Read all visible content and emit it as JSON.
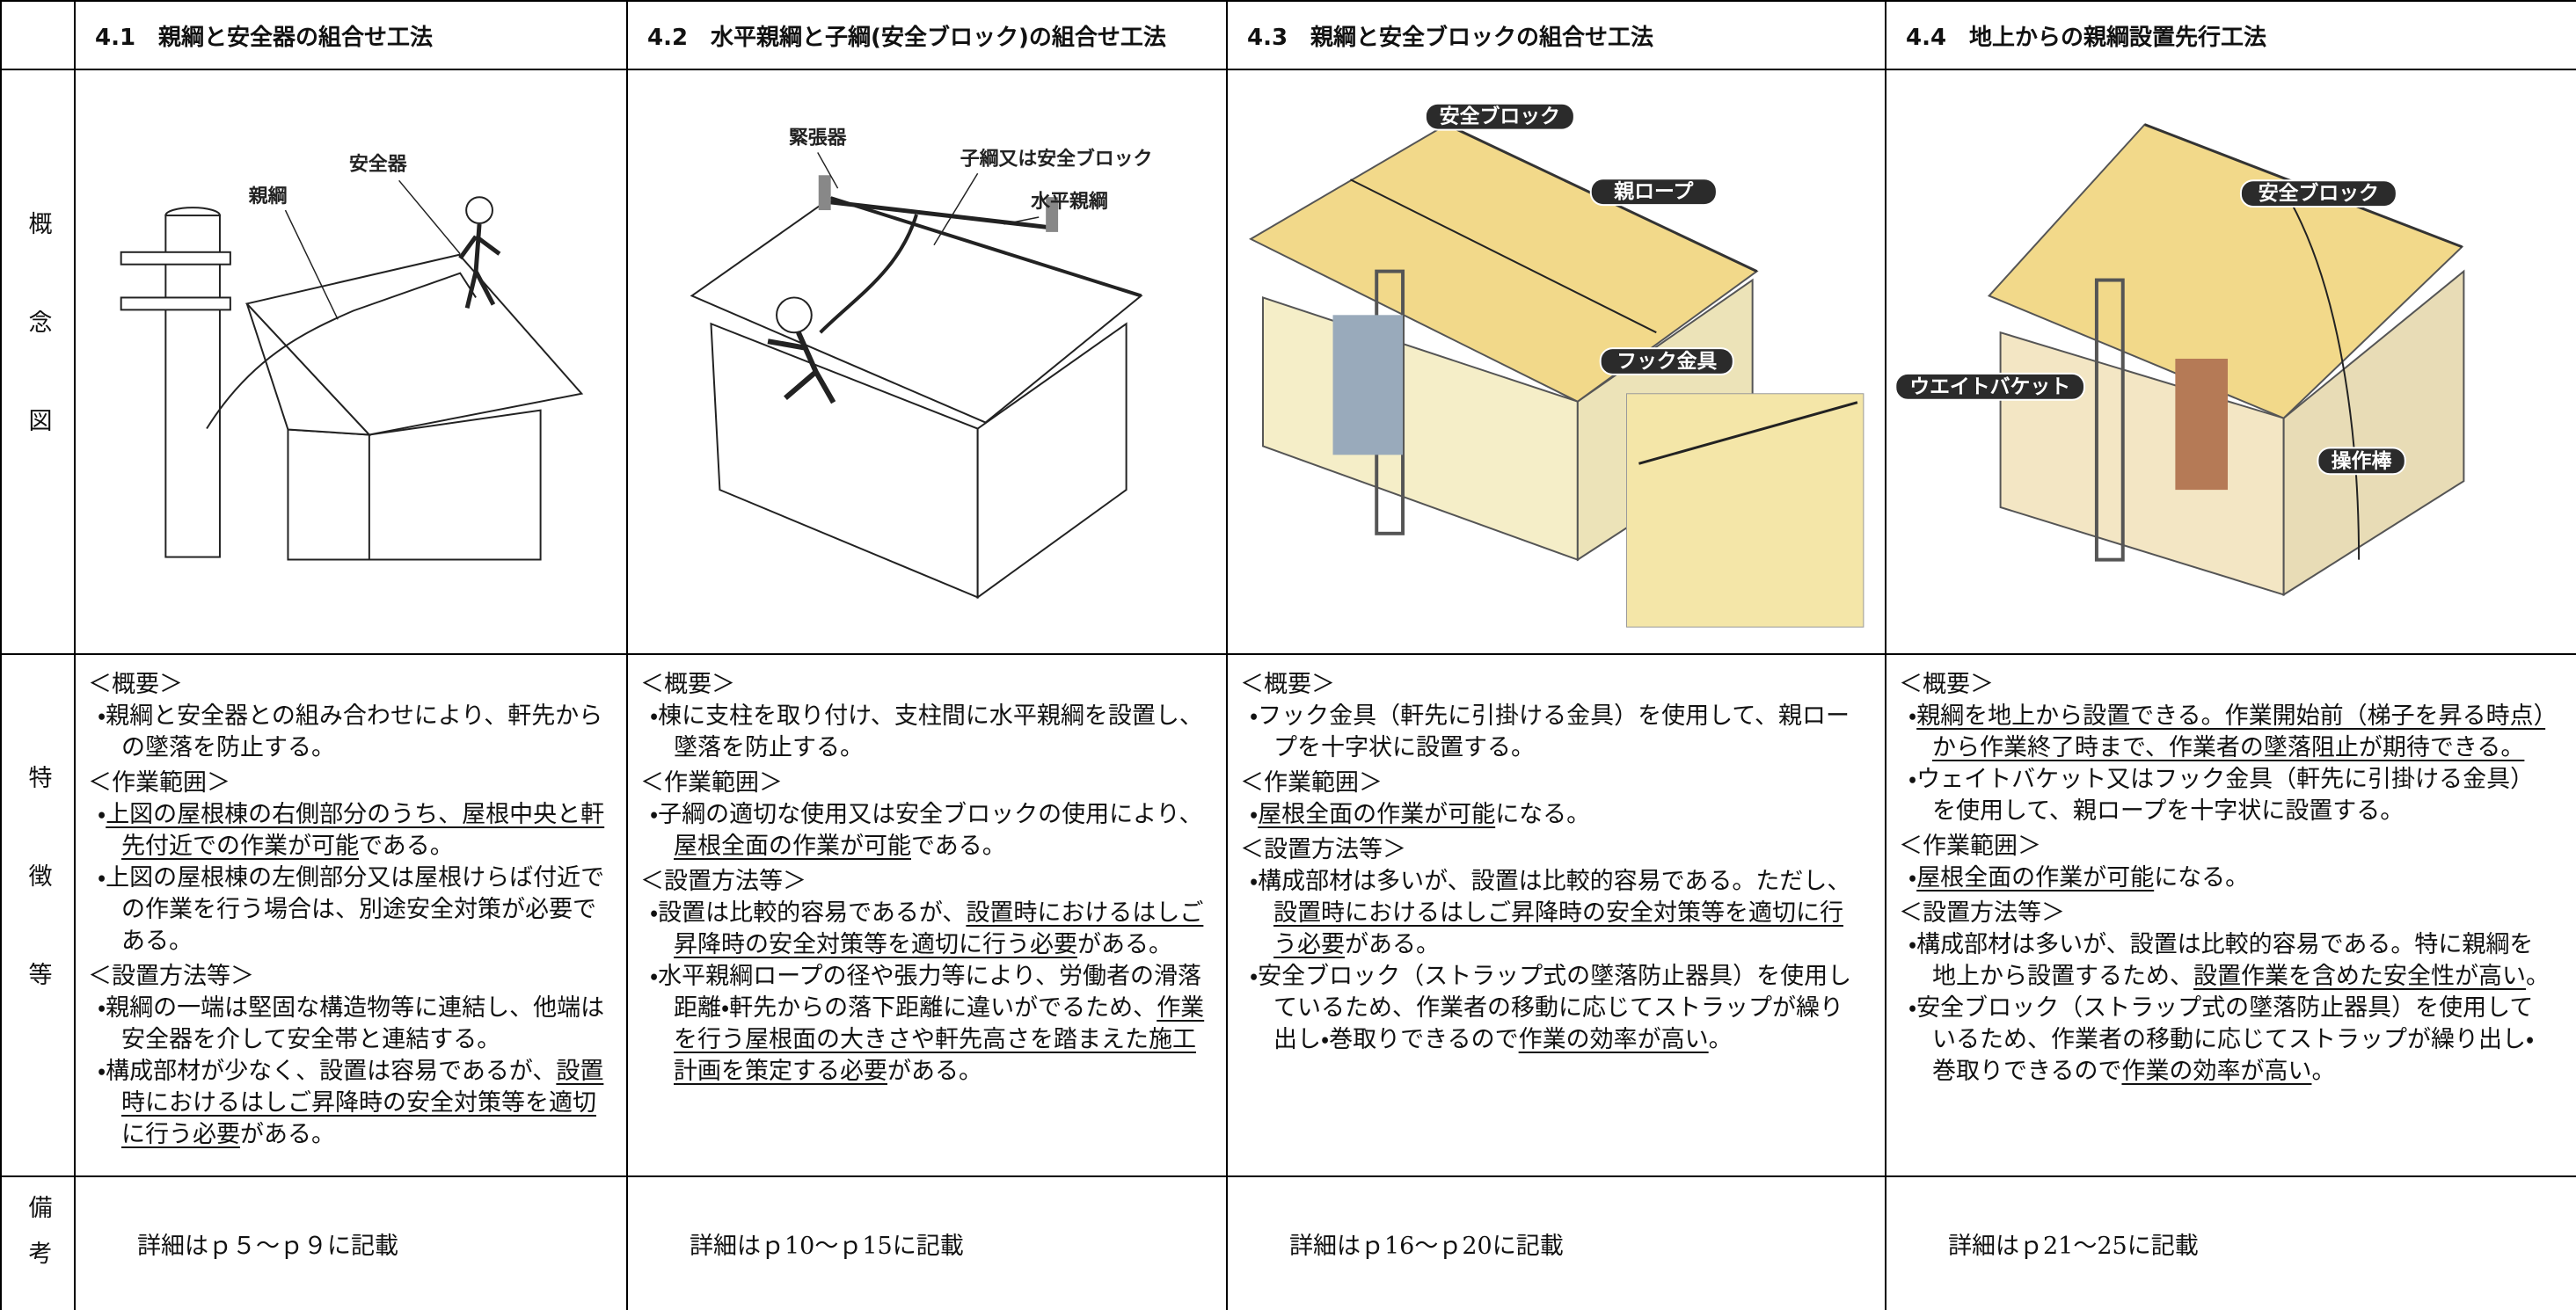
{
  "table": {
    "row_labels": [
      "概念図",
      "特徴等",
      "備考"
    ],
    "columns": [
      {
        "title": "4.1　親綱と安全器の組合せ工法",
        "labels": [
          "安全器",
          "親綱"
        ],
        "features": [
          {
            "heading": "＜概要＞",
            "items": [
              [
                {
                  "text": "・親綱と安全器との組み合わせにより、軒先からの墜落を防止する。"
                }
              ]
            ]
          },
          {
            "heading": "＜作業範囲＞",
            "items": [
              [
                {
                  "text": "・"
                },
                {
                  "text": "上図の屋根棟の右側部分のうち、屋根中央と軒先付近での作業が可能",
                  "underline": true
                },
                {
                  "text": "である。"
                }
              ],
              [
                {
                  "text": "・上図の屋根棟の左側部分又は屋根けらば付近での作業を行う場合は、別途安全対策が必要である。"
                }
              ]
            ]
          },
          {
            "heading": "＜設置方法等＞",
            "items": [
              [
                {
                  "text": "・親綱の一端は堅固な構造物等に連結し、他端は安全器を介して安全帯と連結する。"
                }
              ],
              [
                {
                  "text": "・構成部材が少なく、設置は容易であるが、"
                },
                {
                  "text": "設置時におけるはしご昇降時の安全対策等を適切に行う必要",
                  "underline": true
                },
                {
                  "text": "がある。"
                }
              ]
            ]
          }
        ],
        "note": "詳細はｐ５～ｐ９に記載"
      },
      {
        "title": "4.2　水平親綱と子綱(安全ブロック)の組合せ工法",
        "labels": [
          "緊張器",
          "子綱又は安全ブロック",
          "水平親綱"
        ],
        "features": [
          {
            "heading": "＜概要＞",
            "items": [
              [
                {
                  "text": "・棟に支柱を取り付け、支柱間に水平親綱を設置し、墜落を防止する。"
                }
              ]
            ]
          },
          {
            "heading": "＜作業範囲＞",
            "items": [
              [
                {
                  "text": "・子綱の適切な使用又は安全ブロックの使用により、"
                },
                {
                  "text": "屋根全面の作業が可能",
                  "underline": true
                },
                {
                  "text": "である。"
                }
              ]
            ]
          },
          {
            "heading": "＜設置方法等＞",
            "items": [
              [
                {
                  "text": "・設置は比較的容易であるが、"
                },
                {
                  "text": "設置時におけるはしご昇降時の安全対策等を適切に行う必要",
                  "underline": true
                },
                {
                  "text": "がある。"
                }
              ],
              [
                {
                  "text": "・水平親綱ロープの径や張力等により、労働者の滑落距離・軒先からの落下距離に違いがでるため、"
                },
                {
                  "text": "作業を行う屋根面の大きさや軒先高さを踏まえた施工計画を策定する必要",
                  "underline": true
                },
                {
                  "text": "がある。"
                }
              ]
            ]
          }
        ],
        "note": "詳細はｐ10～ｐ15に記載"
      },
      {
        "title": "4.3　親綱と安全ブロックの組合せ工法",
        "labels": [
          "安全ブロック",
          "親ロープ",
          "フック金具"
        ],
        "features": [
          {
            "heading": "＜概要＞",
            "items": [
              [
                {
                  "text": "・フック金具（軒先に引掛ける金具）を使用して、親ロープを十字状に設置する。"
                }
              ]
            ]
          },
          {
            "heading": "＜作業範囲＞",
            "items": [
              [
                {
                  "text": "・"
                },
                {
                  "text": "屋根全面の作業が可能",
                  "underline": true
                },
                {
                  "text": "になる。"
                }
              ]
            ]
          },
          {
            "heading": "＜設置方法等＞",
            "items": [
              [
                {
                  "text": "・構成部材は多いが、設置は比較的容易である。ただし、"
                },
                {
                  "text": "設置時におけるはしご昇降時の安全対策等を適切に行う必要",
                  "underline": true
                },
                {
                  "text": "がある。"
                }
              ],
              [
                {
                  "text": "・安全ブロック（ストラップ式の墜落防止器具）を使用しているため、作業者の移動に応じてストラップが繰り出し・巻取りできるので"
                },
                {
                  "text": "作業の効率が高い",
                  "underline": true
                },
                {
                  "text": "。"
                }
              ]
            ]
          }
        ],
        "note": "詳細はｐ16～ｐ20に記載"
      },
      {
        "title": "4.4　地上からの親綱設置先行工法",
        "labels": [
          "安全ブロック",
          "ウエイトバケット",
          "操作棒"
        ],
        "features": [
          {
            "heading": "＜概要＞",
            "items": [
              [
                {
                  "text": "・"
                },
                {
                  "text": "親綱を地上から設置できる。作業開始前（梯子を昇る時点）から作業終了時まで、作業者の墜落阻止が期待できる。",
                  "underline": true
                }
              ],
              [
                {
                  "text": "・ウェイトバケット又はフック金具（軒先に引掛ける金具）を使用して、親ロープを十字状に設置する。"
                }
              ]
            ]
          },
          {
            "heading": "＜作業範囲＞",
            "items": [
              [
                {
                  "text": "・"
                },
                {
                  "text": "屋根全面の作業が可能",
                  "underline": true
                },
                {
                  "text": "になる。"
                }
              ]
            ]
          },
          {
            "heading": "＜設置方法等＞",
            "items": [
              [
                {
                  "text": "・構成部材は多いが、設置は比較的容易である。特に親綱を地上から設置するため、"
                },
                {
                  "text": "設置作業を含めた安全性が高い",
                  "underline": true
                },
                {
                  "text": "。"
                }
              ],
              [
                {
                  "text": "・安全ブロック（ストラップ式の墜落防止器具）を使用しているため、作業者の移動に応じてストラップが繰り出し・巻取りできるので"
                },
                {
                  "text": "作業の効率が高い",
                  "underline": true
                },
                {
                  "text": "。"
                }
              ]
            ]
          }
        ],
        "note": "詳細はｐ21～25に記載"
      }
    ]
  }
}
